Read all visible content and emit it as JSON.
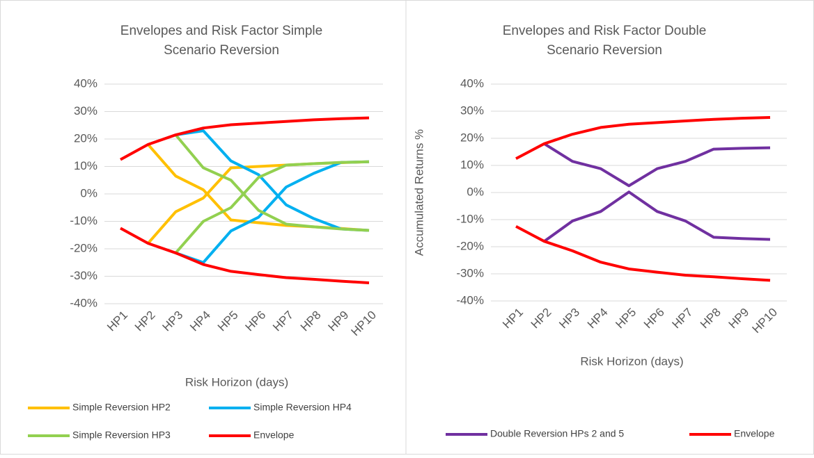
{
  "chart_data": [
    {
      "type": "line",
      "title": "Envelopes and Risk Factor Simple Scenario Reversion",
      "x_label": "Risk Horizon (days)",
      "categories": [
        "HP1",
        "HP2",
        "HP3",
        "HP4",
        "HP5",
        "HP6",
        "HP7",
        "HP8",
        "HP9",
        "HP10"
      ],
      "ylim": [
        -40,
        40
      ],
      "yticks": [
        {
          "value": -40,
          "label": "-40%"
        },
        {
          "value": -30,
          "label": "-30%"
        },
        {
          "value": -20,
          "label": "-20%"
        },
        {
          "value": -10,
          "label": "-10%"
        },
        {
          "value": 0,
          "label": "0%"
        },
        {
          "value": 10,
          "label": "10%"
        },
        {
          "value": 20,
          "label": "20%"
        },
        {
          "value": 30,
          "label": "30%"
        },
        {
          "value": 40,
          "label": "40%"
        }
      ],
      "grid": true,
      "series": [
        {
          "name": "Simple Reversion HP2",
          "color": "#ffc000",
          "values": [
            null,
            18,
            6.5,
            1.5,
            -9.5,
            -10.5,
            -11.5,
            -12,
            -12.6,
            -13.3
          ],
          "values_2": [
            null,
            -18,
            -6.5,
            -1.5,
            9.5,
            10,
            10.5,
            11,
            11.4,
            11.7
          ]
        },
        {
          "name": "Simple Reversion HP4",
          "color": "#00b0f0",
          "values": [
            null,
            null,
            21.5,
            23,
            12,
            7,
            -4,
            -9,
            -12.8,
            -13.3
          ],
          "values_2": [
            null,
            null,
            -21.5,
            -25,
            -13.5,
            -8.5,
            2.5,
            7.5,
            11.5,
            11.7
          ]
        },
        {
          "name": "Simple Reversion HP3",
          "color": "#92d050",
          "values": [
            null,
            null,
            21.5,
            9.5,
            5,
            -6,
            -11,
            -12,
            -12.8,
            -13.3
          ],
          "values_2": [
            null,
            null,
            -21.5,
            -10,
            -5,
            6,
            10.5,
            11,
            11.5,
            11.7
          ]
        },
        {
          "name": "Envelope",
          "color": "#ff0000",
          "values": [
            12.5,
            18,
            21.5,
            24,
            25.2,
            25.8,
            26.4,
            27,
            27.4,
            27.7
          ],
          "values_2": [
            -12.5,
            -18,
            -21.5,
            -25.7,
            -28.2,
            -29.4,
            -30.5,
            -31.1,
            -31.8,
            -32.4
          ]
        }
      ]
    },
    {
      "type": "line",
      "title": "Envelopes and Risk Factor Double Scenario Reversion",
      "x_label": "Risk Horizon (days)",
      "y_label": "Accumulated Returns %",
      "categories": [
        "HP1",
        "HP2",
        "HP3",
        "HP4",
        "HP5",
        "HP6",
        "HP7",
        "HP8",
        "HP9",
        "HP10"
      ],
      "ylim": [
        -40,
        40
      ],
      "yticks": [
        {
          "value": -40,
          "label": "-40%"
        },
        {
          "value": -30,
          "label": "-30%"
        },
        {
          "value": -20,
          "label": "-20%"
        },
        {
          "value": -10,
          "label": "-10%"
        },
        {
          "value": 0,
          "label": "0%"
        },
        {
          "value": 10,
          "label": "10%"
        },
        {
          "value": 20,
          "label": "20%"
        },
        {
          "value": 30,
          "label": "30%"
        },
        {
          "value": 40,
          "label": "40%"
        }
      ],
      "grid": true,
      "series": [
        {
          "name": "Double Reversion HPs 2 and 5",
          "color": "#7030a0",
          "values": [
            null,
            18,
            11.5,
            8.8,
            2.5,
            8.8,
            11.5,
            16,
            16.3,
            16.5
          ],
          "values_2": [
            null,
            -18,
            -10.5,
            -7,
            0.2,
            -7,
            -10.5,
            -16.5,
            -17,
            -17.3
          ]
        },
        {
          "name": "Envelope",
          "color": "#ff0000",
          "values": [
            12.5,
            18,
            21.5,
            24,
            25.2,
            25.8,
            26.4,
            27,
            27.4,
            27.7
          ],
          "values_2": [
            -12.5,
            -18,
            -21.5,
            -25.7,
            -28.2,
            -29.4,
            -30.5,
            -31.1,
            -31.8,
            -32.4
          ]
        }
      ]
    }
  ]
}
